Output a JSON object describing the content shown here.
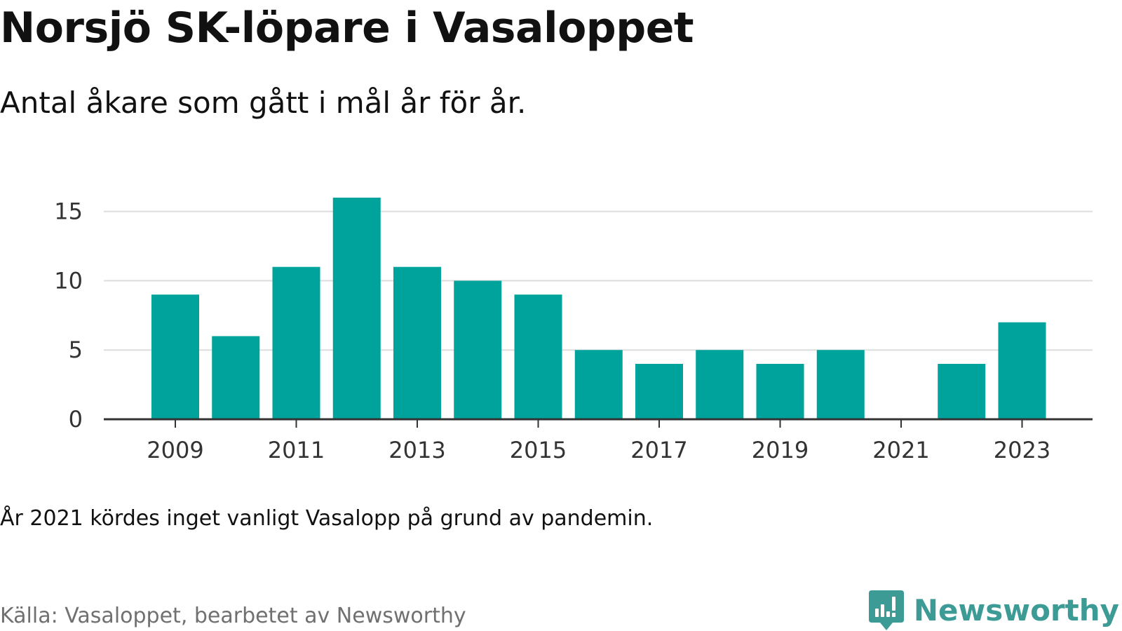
{
  "header": {
    "title": "Norsjö SK-löpare i Vasaloppet",
    "subtitle": "Antal åkare som gått i mål år för år."
  },
  "footer": {
    "note": "År 2021 kördes inget vanligt Vasalopp på grund av pandemin.",
    "source": "Källa: Vasaloppet, bearbetet av Newsworthy",
    "brand_name": "Newsworthy",
    "brand_icon": "newsworthy-logo-icon"
  },
  "colors": {
    "bar": "#00a39b",
    "brand": "#3d9b96",
    "grid": "#dddddd",
    "axis": "#333333"
  },
  "chart_data": {
    "type": "bar",
    "title": "Norsjö SK-löpare i Vasaloppet",
    "subtitle": "Antal åkare som gått i mål år för år.",
    "xlabel": "",
    "ylabel": "",
    "x": [
      2009,
      2010,
      2011,
      2012,
      2013,
      2014,
      2015,
      2016,
      2017,
      2018,
      2019,
      2020,
      2021,
      2022,
      2023
    ],
    "values": [
      9,
      6,
      11,
      16,
      11,
      10,
      9,
      5,
      4,
      5,
      4,
      5,
      0,
      4,
      7
    ],
    "x_ticks": [
      "2009",
      "2011",
      "2013",
      "2015",
      "2017",
      "2019",
      "2021",
      "2023"
    ],
    "y_ticks": [
      0,
      5,
      10,
      15
    ],
    "ylim": [
      0,
      16.5
    ],
    "grid": true,
    "legend": "none"
  }
}
